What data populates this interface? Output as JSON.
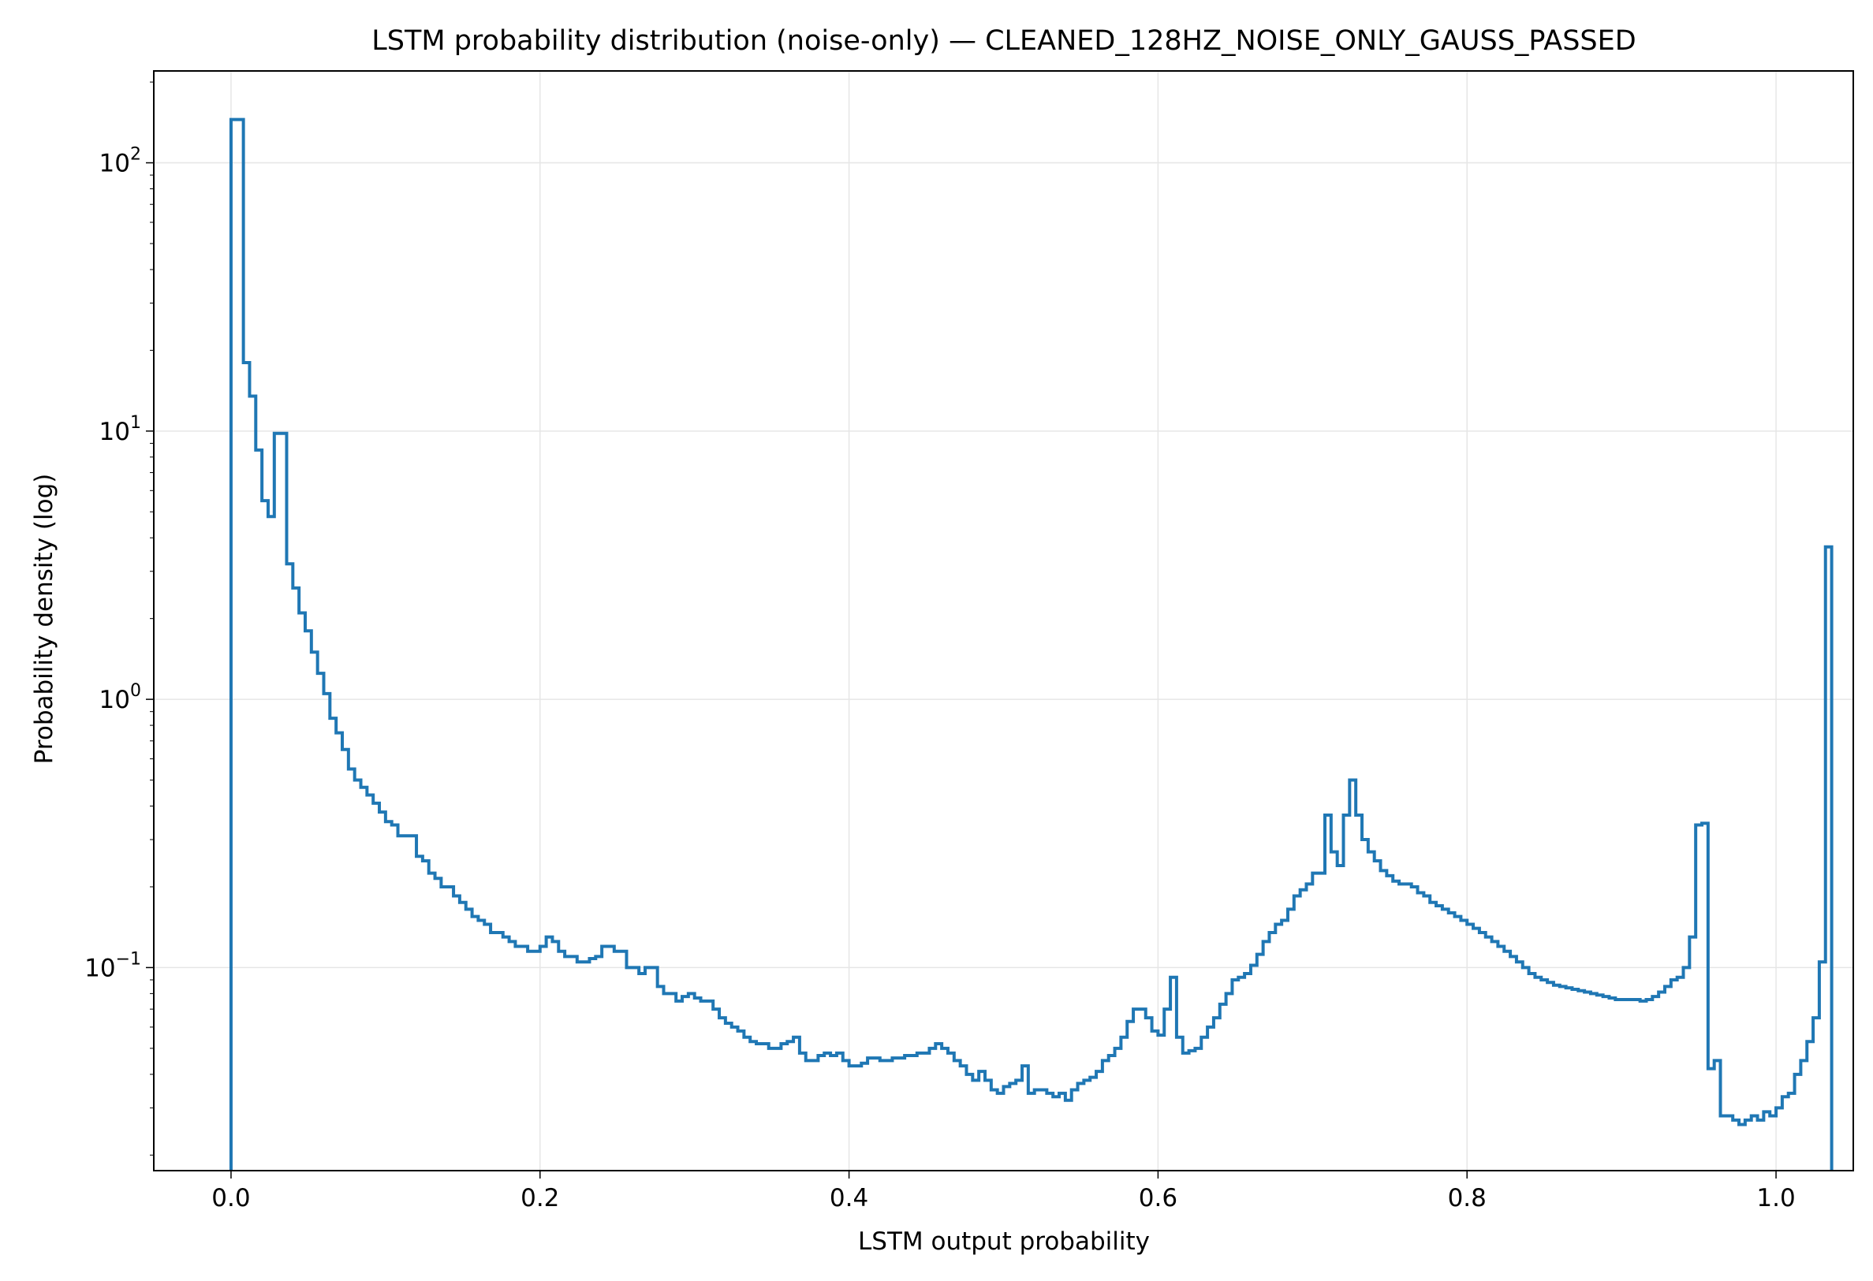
{
  "chart_data": {
    "type": "step",
    "title": "LSTM probability distribution (noise-only) — CLEANED_128HZ_NOISE_ONLY_GAUSS_PASSED",
    "xlabel": "LSTM output probability",
    "ylabel": "Probability density (log)",
    "xlim": [
      -0.05,
      1.05
    ],
    "ylim": [
      0.0175,
      220
    ],
    "yscale": "log",
    "grid": true,
    "color": "#1f77b4",
    "x_ticks": [
      0.0,
      0.2,
      0.4,
      0.6,
      0.8,
      1.0
    ],
    "x_tick_labels": [
      "0.0",
      "0.2",
      "0.4",
      "0.6",
      "0.8",
      "1.0"
    ],
    "y_ticks": [
      0.1,
      1,
      10,
      100
    ],
    "y_tick_bases": [
      "10",
      "10",
      "10",
      "10"
    ],
    "y_tick_exponents": [
      "−1",
      "0",
      "1",
      "2"
    ],
    "bin_width": 0.004,
    "bin_start": 0.0,
    "values": [
      145,
      145,
      18,
      13.5,
      8.5,
      5.5,
      4.8,
      9.8,
      9.8,
      3.2,
      2.6,
      2.1,
      1.8,
      1.5,
      1.25,
      1.05,
      0.85,
      0.75,
      0.65,
      0.55,
      0.5,
      0.47,
      0.44,
      0.41,
      0.38,
      0.35,
      0.34,
      0.31,
      0.31,
      0.31,
      0.26,
      0.25,
      0.225,
      0.215,
      0.2,
      0.2,
      0.185,
      0.175,
      0.165,
      0.155,
      0.15,
      0.145,
      0.135,
      0.135,
      0.13,
      0.125,
      0.12,
      0.12,
      0.115,
      0.115,
      0.12,
      0.13,
      0.125,
      0.115,
      0.11,
      0.11,
      0.105,
      0.105,
      0.108,
      0.11,
      0.12,
      0.12,
      0.115,
      0.115,
      0.1,
      0.1,
      0.095,
      0.1,
      0.1,
      0.085,
      0.08,
      0.08,
      0.075,
      0.078,
      0.08,
      0.077,
      0.075,
      0.075,
      0.07,
      0.065,
      0.062,
      0.06,
      0.058,
      0.055,
      0.053,
      0.052,
      0.052,
      0.05,
      0.05,
      0.052,
      0.053,
      0.055,
      0.048,
      0.045,
      0.045,
      0.047,
      0.048,
      0.047,
      0.048,
      0.045,
      0.043,
      0.043,
      0.044,
      0.046,
      0.046,
      0.045,
      0.045,
      0.046,
      0.046,
      0.047,
      0.047,
      0.048,
      0.048,
      0.05,
      0.052,
      0.05,
      0.048,
      0.045,
      0.043,
      0.04,
      0.038,
      0.041,
      0.038,
      0.035,
      0.034,
      0.036,
      0.037,
      0.038,
      0.043,
      0.034,
      0.035,
      0.035,
      0.034,
      0.033,
      0.034,
      0.032,
      0.035,
      0.037,
      0.038,
      0.039,
      0.041,
      0.045,
      0.047,
      0.05,
      0.055,
      0.063,
      0.07,
      0.07,
      0.065,
      0.058,
      0.056,
      0.07,
      0.092,
      0.055,
      0.048,
      0.049,
      0.05,
      0.055,
      0.06,
      0.065,
      0.073,
      0.08,
      0.09,
      0.092,
      0.095,
      0.102,
      0.112,
      0.125,
      0.135,
      0.145,
      0.15,
      0.165,
      0.185,
      0.195,
      0.205,
      0.225,
      0.225,
      0.37,
      0.27,
      0.24,
      0.37,
      0.5,
      0.37,
      0.3,
      0.27,
      0.25,
      0.23,
      0.22,
      0.21,
      0.205,
      0.205,
      0.2,
      0.19,
      0.185,
      0.175,
      0.17,
      0.165,
      0.16,
      0.155,
      0.15,
      0.145,
      0.14,
      0.135,
      0.13,
      0.125,
      0.12,
      0.115,
      0.11,
      0.105,
      0.1,
      0.095,
      0.092,
      0.09,
      0.088,
      0.086,
      0.085,
      0.084,
      0.083,
      0.082,
      0.081,
      0.08,
      0.079,
      0.078,
      0.077,
      0.076,
      0.076,
      0.076,
      0.076,
      0.075,
      0.076,
      0.078,
      0.081,
      0.085,
      0.09,
      0.092,
      0.1,
      0.13,
      0.34,
      0.345,
      0.042,
      0.045,
      0.028,
      0.028,
      0.027,
      0.026,
      0.027,
      0.028,
      0.027,
      0.029,
      0.028,
      0.03,
      0.033,
      0.034,
      0.04,
      0.045,
      0.053,
      0.065,
      0.105,
      3.7
    ]
  }
}
